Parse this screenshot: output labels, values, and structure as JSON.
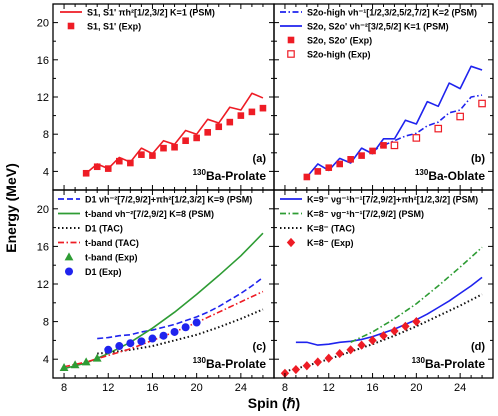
{
  "figure": {
    "ylabel": "Energy (MeV)",
    "xlabel": "Spin (ℏ)"
  },
  "chart_data": [
    {
      "type": "line",
      "panel_label": "(a)",
      "nucleus_label": "130Ba-Prolate",
      "x_ticks": [
        8,
        12,
        16,
        20,
        24
      ],
      "y_ticks": [
        4,
        8,
        12,
        16,
        20
      ],
      "xlim": [
        7,
        27
      ],
      "ylim": [
        2,
        22
      ],
      "series": [
        {
          "name": "S1, S1' πh²[1/2,3/2] K=1 (PSM)",
          "style": "solid",
          "marker": "none",
          "color": "#ee1c25",
          "x": [
            10,
            11,
            12,
            13,
            14,
            15,
            16,
            17,
            18,
            19,
            20,
            21,
            22,
            23,
            24,
            25,
            26
          ],
          "y": [
            3.8,
            4.8,
            4.3,
            5.5,
            5.0,
            6.5,
            5.9,
            7.3,
            6.9,
            8.4,
            8.0,
            9.6,
            9.2,
            10.9,
            10.6,
            12.4,
            11.9
          ]
        },
        {
          "name": "S1, S1' (Exp)",
          "style": "none",
          "marker": "filled-square",
          "color": "#ee1c25",
          "x": [
            10,
            11,
            12,
            13,
            14,
            15,
            16,
            17,
            18,
            19,
            20,
            21,
            22,
            23,
            24,
            25,
            26
          ],
          "y": [
            3.8,
            4.5,
            4.3,
            5.1,
            4.9,
            5.8,
            5.7,
            6.5,
            6.6,
            7.3,
            7.6,
            8.2,
            8.8,
            9.3,
            10.0,
            10.4,
            10.8
          ]
        }
      ]
    },
    {
      "type": "line",
      "panel_label": "(b)",
      "nucleus_label": "130Ba-Oblate",
      "x_ticks": [
        8,
        12,
        16,
        20,
        24
      ],
      "y_ticks": [
        4,
        8,
        12,
        16,
        20
      ],
      "xlim": [
        7,
        27
      ],
      "ylim": [
        2,
        22
      ],
      "series": [
        {
          "name": "S2o-high νh⁻¹[1/2,3/2,5/2,7/2] K=2 (PSM)",
          "style": "dash-dot",
          "marker": "none",
          "color": "#1f23ee",
          "x": [
            16,
            17,
            18,
            19,
            20,
            21,
            22,
            23,
            24,
            25,
            26
          ],
          "y": [
            6.2,
            6.8,
            7.3,
            7.8,
            8.1,
            8.9,
            9.3,
            10.3,
            10.6,
            12.0,
            12.2
          ]
        },
        {
          "name": "S2o, S2o' νh⁻²[3/2,5/2] K=1 (PSM)",
          "style": "solid",
          "marker": "none",
          "color": "#1f23ee",
          "x": [
            10,
            11,
            12,
            13,
            14,
            15,
            16,
            17,
            18,
            19,
            20,
            21,
            22,
            23,
            24,
            25,
            26
          ],
          "y": [
            3.4,
            4.8,
            4.1,
            5.4,
            4.9,
            6.5,
            5.9,
            7.5,
            7.5,
            9.5,
            9.1,
            11.5,
            11.0,
            13.5,
            12.9,
            15.3,
            14.9
          ]
        },
        {
          "name": "S2o, S2o' (Exp)",
          "style": "none",
          "marker": "filled-square",
          "color": "#ee1c25",
          "x": [
            10,
            11,
            12,
            13,
            14,
            15,
            16,
            17
          ],
          "y": [
            3.4,
            4.0,
            4.4,
            4.8,
            5.3,
            5.7,
            6.2,
            6.8
          ]
        },
        {
          "name": "S2o-high (Exp)",
          "style": "none",
          "marker": "open-square",
          "color": "#ee1c25",
          "x": [
            18,
            20,
            22,
            24,
            26
          ],
          "y": [
            6.8,
            7.6,
            8.6,
            9.9,
            11.3
          ]
        }
      ]
    },
    {
      "type": "line",
      "panel_label": "(c)",
      "nucleus_label": "130Ba-Prolate",
      "x_ticks": [
        8,
        12,
        16,
        20,
        24
      ],
      "y_ticks": [
        4,
        8,
        12,
        16,
        20
      ],
      "xlim": [
        7,
        27
      ],
      "ylim": [
        2,
        22
      ],
      "series": [
        {
          "name": "D1 νh⁻²[7/2,9/2]+πh²[1/2,3/2] K=9 (PSM)",
          "style": "dash",
          "marker": "none",
          "color": "#1f23ee",
          "x": [
            11,
            12,
            13,
            14,
            15,
            16,
            17,
            18,
            19,
            20,
            21,
            22,
            23,
            24,
            25,
            26
          ],
          "y": [
            6.2,
            6.3,
            6.5,
            6.6,
            6.9,
            7.1,
            7.4,
            7.7,
            8.1,
            8.5,
            9.0,
            9.6,
            10.3,
            11.0,
            11.8,
            12.7
          ]
        },
        {
          "name": "t-band νh⁻²[7/2,9/2] K=8 (PSM)",
          "style": "solid",
          "marker": "none",
          "color": "#2e9c34",
          "x": [
            8,
            10,
            12,
            14,
            16,
            18,
            20,
            22,
            24,
            26
          ],
          "y": [
            3.0,
            3.6,
            4.6,
            5.8,
            7.3,
            9.0,
            10.9,
            12.9,
            15.0,
            17.4
          ]
        },
        {
          "name": "D1 (TAC)",
          "style": "dot",
          "marker": "none",
          "color": "#111111",
          "x": [
            11,
            12,
            14,
            16,
            18,
            20,
            22,
            24,
            26
          ],
          "y": [
            4.6,
            4.7,
            5.0,
            5.4,
            6.0,
            6.6,
            7.4,
            8.3,
            9.3
          ]
        },
        {
          "name": "t-band (TAC)",
          "style": "dash-dot",
          "marker": "none",
          "color": "#ee1c25",
          "x": [
            8,
            10,
            12,
            14,
            16,
            18,
            20,
            22,
            24,
            26
          ],
          "y": [
            3.2,
            3.7,
            4.4,
            5.1,
            6.0,
            6.9,
            7.9,
            9.0,
            10.1,
            11.2
          ]
        },
        {
          "name": "t-band (Exp)",
          "style": "none",
          "marker": "filled-triangle",
          "color": "#2e9c34",
          "x": [
            8,
            9,
            10,
            11
          ],
          "y": [
            3.1,
            3.4,
            3.7,
            4.1
          ]
        },
        {
          "name": "D1 (Exp)",
          "style": "none",
          "marker": "filled-circle",
          "color": "#1f23ee",
          "x": [
            12,
            13,
            14,
            15,
            16,
            17,
            18,
            19,
            20
          ],
          "y": [
            5.0,
            5.4,
            5.7,
            5.9,
            6.2,
            6.5,
            6.9,
            7.4,
            7.9
          ]
        }
      ]
    },
    {
      "type": "line",
      "panel_label": "(d)",
      "nucleus_label": "130Ba-Prolate",
      "x_ticks": [
        8,
        12,
        16,
        20,
        24
      ],
      "y_ticks": [
        4,
        8,
        12,
        16,
        20
      ],
      "xlim": [
        7,
        27
      ],
      "ylim": [
        2,
        22
      ],
      "series": [
        {
          "name": "K=9⁻ νg⁻¹h⁻¹[7/2,9/2]+πh²[1/2,3/2] (PSM)",
          "style": "solid",
          "marker": "none",
          "color": "#1f23ee",
          "x": [
            9,
            10,
            11,
            12,
            13,
            14,
            15,
            16,
            17,
            18,
            19,
            20,
            21,
            22,
            23,
            24,
            25,
            26
          ],
          "y": [
            5.8,
            5.8,
            5.5,
            5.6,
            5.8,
            5.9,
            6.1,
            6.4,
            6.8,
            7.2,
            7.7,
            8.2,
            8.8,
            9.5,
            10.2,
            11.0,
            11.8,
            12.7
          ]
        },
        {
          "name": "K=8⁻ νg⁻¹h⁻¹[7/2,9/2] (PSM)",
          "style": "dash-dot",
          "marker": "none",
          "color": "#2e9c34",
          "x": [
            14,
            16,
            18,
            20,
            22,
            24,
            26
          ],
          "y": [
            5.8,
            6.9,
            8.3,
            9.9,
            11.8,
            13.8,
            15.9
          ]
        },
        {
          "name": "K=8⁻ (TAC)",
          "style": "dot",
          "marker": "none",
          "color": "#111111",
          "x": [
            8,
            10,
            12,
            14,
            16,
            18,
            20,
            22,
            24,
            26
          ],
          "y": [
            2.7,
            3.3,
            4.0,
            4.8,
            5.6,
            6.5,
            7.5,
            8.6,
            9.7,
            10.9
          ]
        },
        {
          "name": "K=8⁻ (Exp)",
          "style": "none",
          "marker": "filled-diamond",
          "color": "#ee1c25",
          "x": [
            8,
            9,
            10,
            11,
            12,
            13,
            14,
            15,
            16,
            17,
            18,
            19,
            20
          ],
          "y": [
            2.5,
            2.9,
            3.3,
            3.7,
            4.1,
            4.6,
            5.0,
            5.5,
            6.0,
            6.5,
            7.0,
            7.5,
            8.0
          ]
        }
      ]
    }
  ]
}
